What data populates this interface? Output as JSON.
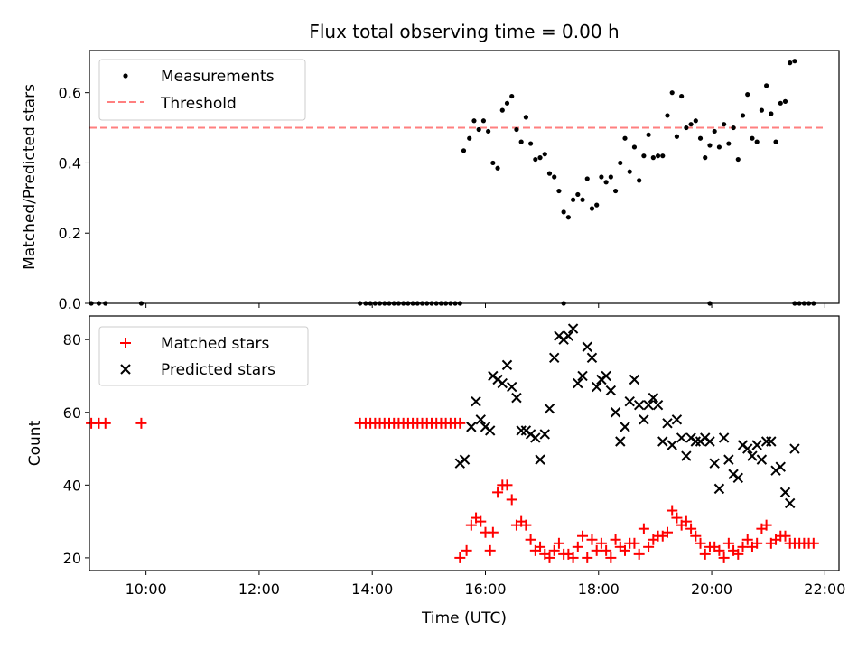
{
  "chart_data": [
    {
      "type": "scatter",
      "title": "Flux total observing time = 0.00 h",
      "ylabel": "Matched/Predicted stars",
      "xlabel": "",
      "xlim": [
        "09:00",
        "22:15"
      ],
      "ylim": [
        0,
        0.72
      ],
      "yticks": [
        0.0,
        0.2,
        0.4,
        0.6
      ],
      "ytick_labels": [
        "0.0",
        "0.2",
        "0.4",
        "0.6"
      ],
      "legend": "top-left",
      "series": [
        {
          "name": "Measurements",
          "marker": "dot",
          "color": "#000000",
          "x": [
            "09:02",
            "09:10",
            "09:17",
            "09:55",
            "13:47",
            "13:53",
            "13:58",
            "14:03",
            "14:08",
            "14:13",
            "14:18",
            "14:23",
            "14:28",
            "14:33",
            "14:38",
            "14:43",
            "14:48",
            "14:53",
            "14:58",
            "15:03",
            "15:08",
            "15:13",
            "15:18",
            "15:23",
            "15:28",
            "15:33",
            "15:37",
            "15:43",
            "15:48",
            "15:53",
            "15:58",
            "16:03",
            "16:08",
            "16:13",
            "16:18",
            "16:23",
            "16:28",
            "16:33",
            "16:38",
            "16:43",
            "16:48",
            "16:53",
            "16:58",
            "17:03",
            "17:08",
            "17:13",
            "17:18",
            "17:23",
            "17:28",
            "17:33",
            "17:38",
            "17:43",
            "17:48",
            "17:53",
            "17:58",
            "18:03",
            "18:08",
            "18:13",
            "18:18",
            "18:23",
            "18:28",
            "18:33",
            "18:38",
            "18:43",
            "18:48",
            "18:53",
            "18:58",
            "19:03",
            "19:08",
            "19:13",
            "19:18",
            "19:23",
            "19:28",
            "19:33",
            "19:38",
            "19:43",
            "19:48",
            "19:53",
            "19:58",
            "20:03",
            "20:08",
            "20:13",
            "20:18",
            "20:23",
            "20:28",
            "20:33",
            "20:38",
            "20:43",
            "20:48",
            "20:53",
            "20:58",
            "21:03",
            "21:08",
            "21:13",
            "21:18",
            "21:23",
            "21:28",
            "17:23",
            "19:58",
            "21:28",
            "21:33",
            "21:38",
            "21:43",
            "21:48"
          ],
          "y": [
            0,
            0,
            0,
            0,
            0,
            0,
            0,
            0,
            0,
            0,
            0,
            0,
            0,
            0,
            0,
            0,
            0,
            0,
            0,
            0,
            0,
            0,
            0,
            0,
            0,
            0,
            0.435,
            0.47,
            0.52,
            0.495,
            0.52,
            0.49,
            0.4,
            0.385,
            0.55,
            0.57,
            0.59,
            0.495,
            0.46,
            0.53,
            0.455,
            0.41,
            0.415,
            0.425,
            0.37,
            0.36,
            0.32,
            0.26,
            0.245,
            0.295,
            0.31,
            0.295,
            0.355,
            0.27,
            0.28,
            0.36,
            0.345,
            0.36,
            0.32,
            0.4,
            0.47,
            0.375,
            0.445,
            0.35,
            0.42,
            0.48,
            0.415,
            0.42,
            0.42,
            0.535,
            0.6,
            0.475,
            0.59,
            0.5,
            0.51,
            0.52,
            0.47,
            0.415,
            0.45,
            0.49,
            0.445,
            0.51,
            0.455,
            0.5,
            0.41,
            0.535,
            0.595,
            0.47,
            0.46,
            0.55,
            0.62,
            0.54,
            0.46,
            0.57,
            0.575,
            0.685,
            0.69,
            0,
            0,
            0,
            0,
            0,
            0,
            0
          ]
        },
        {
          "name": "Threshold",
          "type": "line",
          "style": "dashed",
          "color": "#ff7f7f",
          "x": [
            "09:00",
            "22:00"
          ],
          "y": [
            0.5,
            0.5
          ]
        }
      ]
    },
    {
      "type": "scatter",
      "title": "",
      "xlabel": "Time (UTC)",
      "ylabel": "Count",
      "xlim": [
        "09:00",
        "22:15"
      ],
      "xticks": [
        "10:00",
        "12:00",
        "14:00",
        "16:00",
        "18:00",
        "20:00",
        "22:00"
      ],
      "ylim": [
        16.5,
        86.5
      ],
      "yticks": [
        20,
        40,
        60,
        80
      ],
      "legend": "top-left",
      "series": [
        {
          "name": "Matched stars",
          "marker": "plus",
          "color": "#ff0000",
          "x": [
            "09:02",
            "09:10",
            "09:17",
            "09:55",
            "13:47",
            "13:53",
            "13:58",
            "14:03",
            "14:08",
            "14:13",
            "14:18",
            "14:23",
            "14:28",
            "14:33",
            "14:38",
            "14:43",
            "14:48",
            "14:53",
            "14:58",
            "15:03",
            "15:08",
            "15:13",
            "15:18",
            "15:23",
            "15:28",
            "15:33",
            "15:33",
            "15:40",
            "15:45",
            "15:50",
            "15:55",
            "16:00",
            "16:05",
            "16:08",
            "16:13",
            "16:18",
            "16:23",
            "16:28",
            "16:33",
            "16:38",
            "16:43",
            "16:48",
            "16:53",
            "16:58",
            "17:03",
            "17:08",
            "17:13",
            "17:18",
            "17:23",
            "17:28",
            "17:33",
            "17:38",
            "17:43",
            "17:48",
            "17:53",
            "17:58",
            "18:03",
            "18:08",
            "18:13",
            "18:18",
            "18:23",
            "18:28",
            "18:33",
            "18:38",
            "18:43",
            "18:48",
            "18:53",
            "18:58",
            "19:03",
            "19:08",
            "19:13",
            "19:18",
            "19:23",
            "19:28",
            "19:33",
            "19:38",
            "19:43",
            "19:48",
            "19:53",
            "19:58",
            "20:03",
            "20:08",
            "20:13",
            "20:18",
            "20:23",
            "20:28",
            "20:33",
            "20:38",
            "20:43",
            "20:48",
            "20:53",
            "20:58",
            "21:03",
            "21:08",
            "21:13",
            "21:18",
            "21:23",
            "21:28",
            "21:33",
            "21:38",
            "21:43",
            "21:48"
          ],
          "y": [
            57,
            57,
            57,
            57,
            57,
            57,
            57,
            57,
            57,
            57,
            57,
            57,
            57,
            57,
            57,
            57,
            57,
            57,
            57,
            57,
            57,
            57,
            57,
            57,
            57,
            57,
            20,
            22,
            29,
            31,
            30,
            27,
            22,
            27,
            38,
            40,
            40,
            36,
            29,
            30,
            29,
            25,
            22,
            23,
            21,
            20,
            22,
            24,
            21,
            21,
            20,
            23,
            26,
            20,
            25,
            22,
            24,
            22,
            20,
            25,
            23,
            22,
            24,
            24,
            21,
            28,
            23,
            25,
            26,
            26,
            27,
            33,
            31,
            29,
            30,
            28,
            26,
            24,
            21,
            23,
            23,
            22,
            20,
            24,
            22,
            21,
            23,
            25,
            23,
            24,
            28,
            29,
            24,
            25,
            26,
            26,
            24,
            24,
            24,
            24,
            24,
            24
          ]
        },
        {
          "name": "Predicted stars",
          "marker": "x",
          "color": "#000000",
          "x": [
            "15:33",
            "15:38",
            "15:45",
            "15:50",
            "15:55",
            "16:00",
            "16:05",
            "16:08",
            "16:13",
            "16:18",
            "16:23",
            "16:28",
            "16:33",
            "16:38",
            "16:43",
            "16:48",
            "16:53",
            "16:58",
            "17:03",
            "17:08",
            "17:13",
            "17:18",
            "17:23",
            "17:28",
            "17:33",
            "17:38",
            "17:43",
            "17:48",
            "17:53",
            "17:58",
            "18:03",
            "18:08",
            "18:13",
            "18:18",
            "18:23",
            "18:28",
            "18:33",
            "18:38",
            "18:43",
            "18:48",
            "18:53",
            "18:58",
            "19:03",
            "19:08",
            "19:13",
            "19:18",
            "19:23",
            "19:28",
            "19:33",
            "19:38",
            "19:43",
            "19:48",
            "19:53",
            "19:58",
            "20:03",
            "20:08",
            "20:13",
            "20:18",
            "20:23",
            "20:28",
            "20:33",
            "20:38",
            "20:43",
            "20:48",
            "20:53",
            "20:58",
            "21:03",
            "21:08",
            "21:13",
            "21:18",
            "21:23",
            "21:28"
          ],
          "y": [
            46,
            47,
            56,
            63,
            58,
            56,
            55,
            70,
            69,
            68,
            73,
            67,
            64,
            55,
            55,
            54,
            53,
            47,
            54,
            61,
            75,
            81,
            80,
            81,
            83,
            68,
            70,
            78,
            75,
            67,
            69,
            70,
            66,
            60,
            52,
            56,
            63,
            69,
            62,
            58,
            62,
            64,
            62,
            52,
            57,
            51,
            58,
            53,
            48,
            53,
            52,
            52,
            53,
            52,
            46,
            39,
            53,
            47,
            43,
            42,
            51,
            50,
            48,
            51,
            47,
            52,
            52,
            44,
            45,
            38,
            35,
            50
          ]
        }
      ]
    }
  ]
}
